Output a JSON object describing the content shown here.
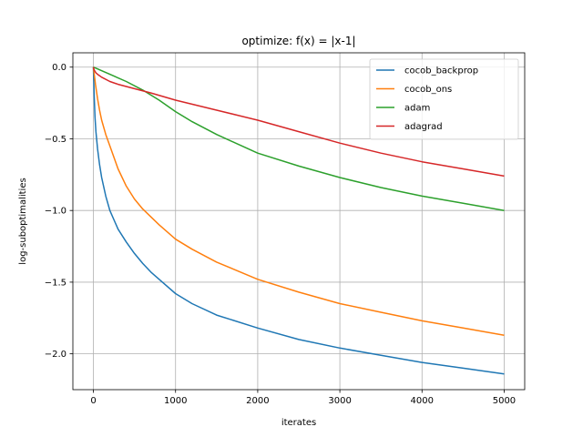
{
  "chart_data": {
    "type": "line",
    "title": "optimize: f(x) = |x-1|",
    "xlabel": "iterates",
    "ylabel": "log-suboptimalities",
    "xlim": [
      -250,
      5250
    ],
    "ylim": [
      -2.25,
      0.1
    ],
    "xticks": [
      0,
      1000,
      2000,
      3000,
      4000,
      5000
    ],
    "xtick_labels": [
      "0",
      "1000",
      "2000",
      "3000",
      "4000",
      "5000"
    ],
    "yticks": [
      0.0,
      -0.5,
      -1.0,
      -1.5,
      -2.0
    ],
    "ytick_labels": [
      "0.0",
      "−0.5",
      "−1.0",
      "−1.5",
      "−2.0"
    ],
    "grid": true,
    "legend_position": "top-right",
    "series": [
      {
        "name": "cocob_backprop",
        "color": "#1f77b4",
        "x": [
          0,
          10,
          20,
          30,
          50,
          75,
          100,
          150,
          200,
          300,
          400,
          500,
          600,
          700,
          800,
          1000,
          1200,
          1500,
          2000,
          2500,
          3000,
          3500,
          4000,
          4500,
          5000
        ],
        "y": [
          0,
          -0.2,
          -0.35,
          -0.45,
          -0.57,
          -0.68,
          -0.77,
          -0.9,
          -1.0,
          -1.13,
          -1.22,
          -1.3,
          -1.37,
          -1.43,
          -1.48,
          -1.58,
          -1.65,
          -1.73,
          -1.82,
          -1.9,
          -1.96,
          -2.01,
          -2.06,
          -2.1,
          -2.14
        ]
      },
      {
        "name": "cocob_ons",
        "color": "#ff7f0e",
        "x": [
          0,
          25,
          50,
          75,
          100,
          150,
          200,
          300,
          400,
          500,
          600,
          800,
          1000,
          1200,
          1500,
          2000,
          2500,
          3000,
          3500,
          4000,
          4500,
          5000
        ],
        "y": [
          0,
          -0.12,
          -0.22,
          -0.3,
          -0.37,
          -0.47,
          -0.55,
          -0.71,
          -0.83,
          -0.92,
          -0.99,
          -1.1,
          -1.2,
          -1.27,
          -1.36,
          -1.48,
          -1.57,
          -1.65,
          -1.71,
          -1.77,
          -1.82,
          -1.87
        ]
      },
      {
        "name": "adam",
        "color": "#2ca02c",
        "x": [
          0,
          200,
          400,
          600,
          800,
          1000,
          1200,
          1500,
          2000,
          2500,
          3000,
          3500,
          4000,
          4500,
          5000
        ],
        "y": [
          0,
          -0.05,
          -0.1,
          -0.16,
          -0.23,
          -0.31,
          -0.38,
          -0.47,
          -0.6,
          -0.69,
          -0.77,
          -0.84,
          -0.9,
          -0.95,
          -1.0
        ]
      },
      {
        "name": "adagrad",
        "color": "#d62728",
        "x": [
          0,
          10,
          30,
          50,
          100,
          200,
          300,
          500,
          700,
          1000,
          1500,
          2000,
          2500,
          3000,
          3500,
          4000,
          4500,
          5000
        ],
        "y": [
          0,
          -0.02,
          -0.04,
          -0.05,
          -0.07,
          -0.1,
          -0.12,
          -0.15,
          -0.18,
          -0.23,
          -0.3,
          -0.37,
          -0.45,
          -0.53,
          -0.6,
          -0.66,
          -0.71,
          -0.76
        ]
      }
    ]
  }
}
